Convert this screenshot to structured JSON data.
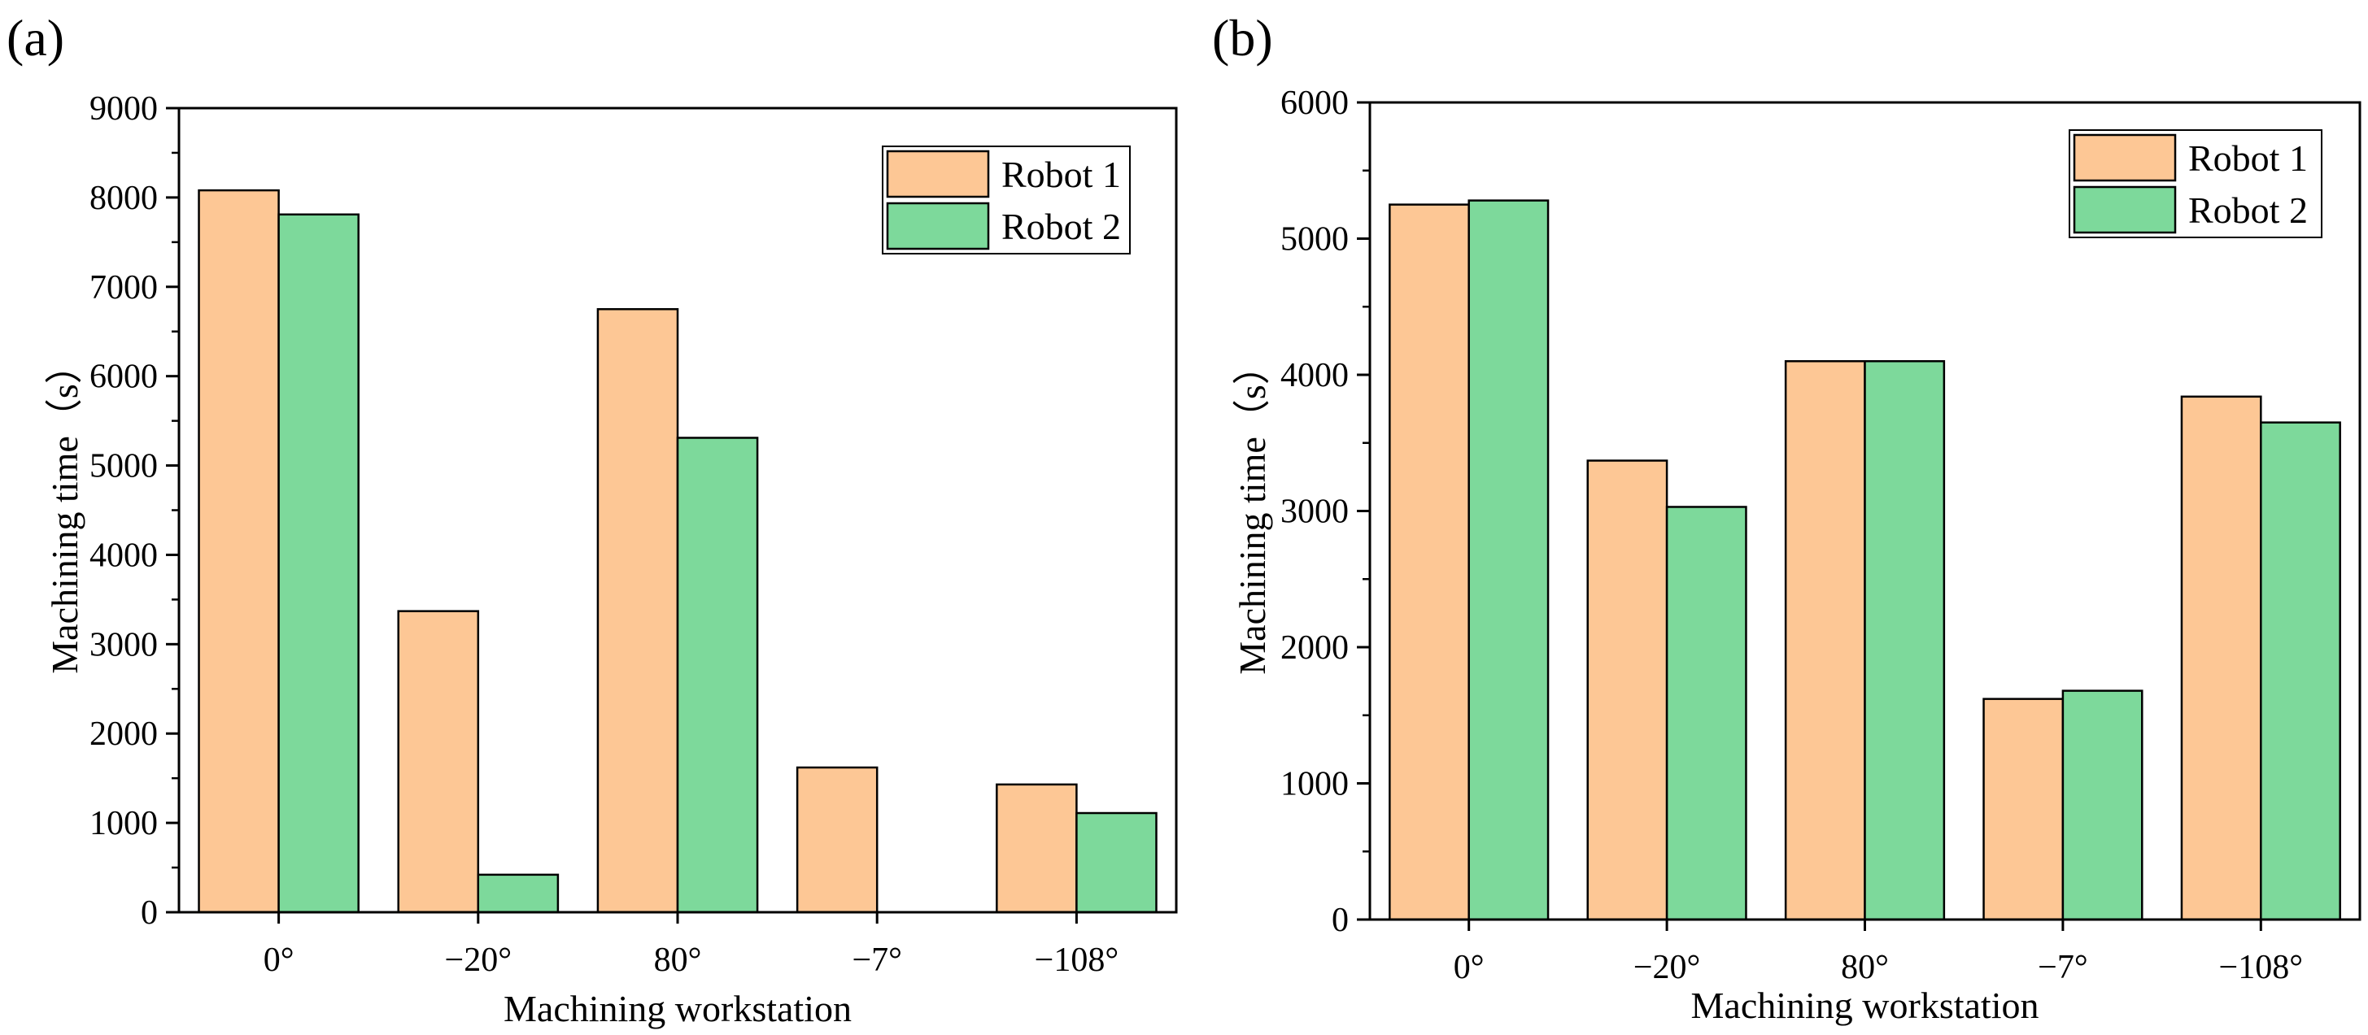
{
  "colors": {
    "robot1": "#fdc795",
    "robot2": "#7dd99b",
    "axis": "#000000"
  },
  "chart_data": [
    {
      "panel_label": "(a)",
      "type": "bar",
      "categories": [
        "0°",
        "−20°",
        "80°",
        "−7°",
        "−108°"
      ],
      "series": [
        {
          "name": "Robot 1",
          "values": [
            8080,
            3370,
            6750,
            1620,
            1430
          ]
        },
        {
          "name": "Robot 2",
          "values": [
            7810,
            420,
            5310,
            0,
            1110
          ]
        }
      ],
      "xlabel": "Machining workstation",
      "ylabel": "Machining time（s）",
      "ylim": [
        0,
        9000
      ],
      "yticks": [
        0,
        1000,
        2000,
        3000,
        4000,
        5000,
        6000,
        7000,
        8000,
        9000
      ],
      "grid": false,
      "legend_position": "top-right"
    },
    {
      "panel_label": "(b)",
      "type": "bar",
      "categories": [
        "0°",
        "−20°",
        "80°",
        "−7°",
        "−108°"
      ],
      "series": [
        {
          "name": "Robot 1",
          "values": [
            5250,
            3370,
            4100,
            1620,
            3840
          ]
        },
        {
          "name": "Robot 2",
          "values": [
            5280,
            3030,
            4100,
            1680,
            3650
          ]
        }
      ],
      "xlabel": "Machining workstation",
      "ylabel": "Machining time（s）",
      "ylim": [
        0,
        6000
      ],
      "yticks": [
        0,
        1000,
        2000,
        3000,
        4000,
        5000,
        6000
      ],
      "grid": false,
      "legend_position": "top-right"
    }
  ]
}
